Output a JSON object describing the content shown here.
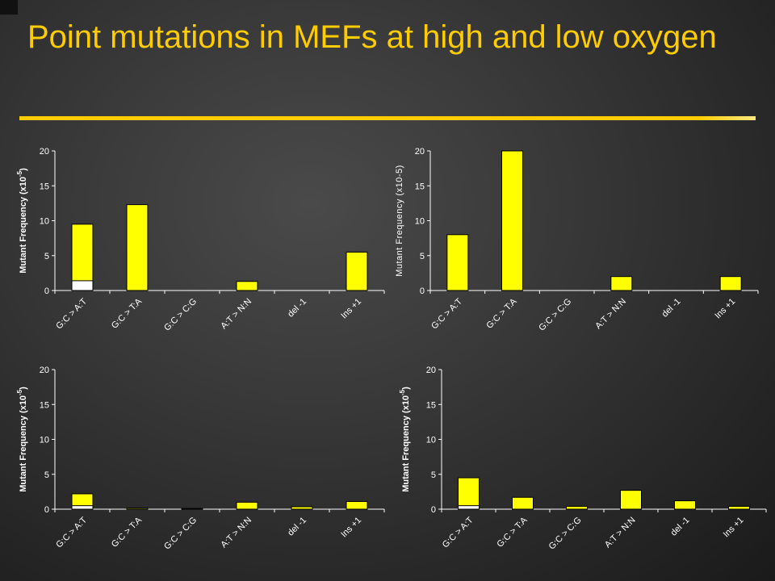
{
  "slide": {
    "title": "Point mutations in MEFs at high and low oxygen"
  },
  "colors": {
    "title": "#ffcc00",
    "bar_fill": "#ffff00",
    "bar_lower_fill": "#ffffff",
    "bar_stroke": "#000000",
    "axis": "#ffffff"
  },
  "chart_data": [
    {
      "type": "bar",
      "categories": [
        "G:C > A:T",
        "G:C > T:A",
        "G:C > C:G",
        "A:T > N:N",
        "del -1",
        "Ins +1"
      ],
      "values": [
        9.5,
        12.3,
        0,
        1.3,
        0,
        5.5
      ],
      "lower_values": [
        1.4,
        0,
        0,
        0,
        0,
        0
      ],
      "ylabel": "Mutant Frequency (x10",
      "ylabel_sup": "-5",
      "ylabel_end": ")",
      "ylim": [
        0,
        20
      ],
      "yticks": [
        "0",
        "5",
        "10",
        "15",
        "20"
      ]
    },
    {
      "type": "bar",
      "categories": [
        "G:C > A:T",
        "G:C > T:A",
        "G:C > C:G",
        "A:T > N:N",
        "del -1",
        "Ins +1"
      ],
      "values": [
        8,
        20,
        0,
        2,
        0,
        2
      ],
      "lower_values": [
        0,
        0,
        0,
        0,
        0,
        0
      ],
      "ylabel": "Mutant Frequency (x10-5)",
      "ylabel_sup": "",
      "ylabel_end": "",
      "ylim": [
        0,
        20
      ],
      "yticks": [
        "0",
        "5",
        "10",
        "15",
        "20"
      ]
    },
    {
      "type": "bar",
      "categories": [
        "G:C > A:T",
        "G:C > T:A",
        "G:C > C:G",
        "A:T > N:N",
        "del -1",
        "Ins +1"
      ],
      "values": [
        2.2,
        0.15,
        0.1,
        1.0,
        0.35,
        1.1
      ],
      "lower_values": [
        0.5,
        0,
        0,
        0,
        0,
        0
      ],
      "ylabel": "Mutant Frequency (x10",
      "ylabel_sup": "-5",
      "ylabel_end": ")",
      "ylim": [
        0,
        20
      ],
      "yticks": [
        "0",
        "5",
        "10",
        "15",
        "20"
      ]
    },
    {
      "type": "bar",
      "categories": [
        "G:C > A:T",
        "G:C > T:A",
        "G:C > C:G",
        "A:T > N:N",
        "del -1",
        "Ins +1"
      ],
      "values": [
        4.5,
        1.7,
        0.4,
        2.7,
        1.2,
        0.4
      ],
      "lower_values": [
        0.5,
        0,
        0,
        0,
        0,
        0
      ],
      "ylabel": "Mutant Frequency (x10",
      "ylabel_sup": "-5",
      "ylabel_end": ")",
      "ylim": [
        0,
        20
      ],
      "yticks": [
        "0",
        "5",
        "10",
        "15",
        "20"
      ]
    }
  ]
}
